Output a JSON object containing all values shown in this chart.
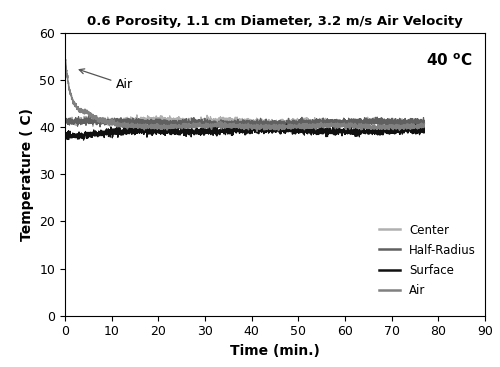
{
  "title": "0.6 Porosity, 1.1 cm Diameter, 3.2 m/s Air Velocity",
  "xlabel": "Time (min.)",
  "ylabel": "Temperature ( C)",
  "xlim": [
    0,
    90
  ],
  "ylim": [
    0,
    60
  ],
  "xticks": [
    0,
    10,
    20,
    30,
    40,
    50,
    60,
    70,
    80,
    90
  ],
  "yticks": [
    0,
    10,
    20,
    30,
    40,
    50,
    60
  ],
  "annotation_temp": "40 ",
  "arrow_label": "Air",
  "colors": {
    "center": "#b0b0b0",
    "half_radius": "#606060",
    "surface": "#101010",
    "air": "#808080"
  },
  "legend_labels": [
    "Center",
    "Half-Radius",
    "Surface",
    "Air"
  ],
  "figsize": [
    5.0,
    3.67
  ],
  "dpi": 100
}
